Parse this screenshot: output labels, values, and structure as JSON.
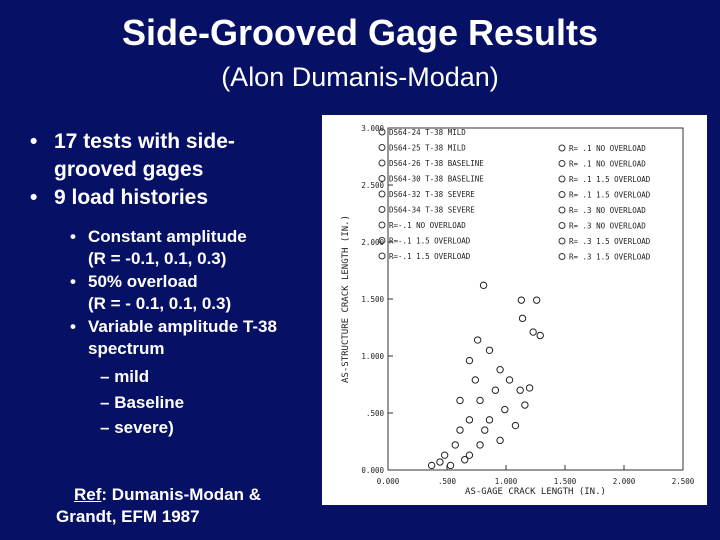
{
  "slide": {
    "title": "Side-Grooved Gage Results",
    "subtitle": "(Alon Dumanis-Modan)",
    "bullets": [
      {
        "lines": [
          "17 tests with side-",
          "grooved gages"
        ]
      },
      {
        "lines": [
          "9 load histories"
        ]
      }
    ],
    "sub_bullets": [
      {
        "lines": [
          "Constant amplitude",
          "(R = -0.1, 0.1, 0.3)"
        ]
      },
      {
        "lines": [
          "50% overload",
          "(R = - 0.1, 0.1, 0.3)"
        ]
      },
      {
        "lines": [
          "Variable amplitude T-38",
          "spectrum"
        ]
      }
    ],
    "dash_items": [
      "mild",
      "Baseline",
      "severe)"
    ],
    "ref_label": "Ref",
    "ref_text": ":  Dumanis-Modan &",
    "ref_text_2": "Grandt, EFM 1987"
  },
  "chart_data": {
    "type": "scatter",
    "x_label": "AS-GAGE CRACK LENGTH (IN.)",
    "y_label": "AS-STRUCTURE CRACK LENGTH (IN.)",
    "legend_left": [
      "DS64-24   T-38 MILD",
      "DS64-25   T-38 MILD",
      "DS64-26   T-38 BASELINE",
      "DS64-30   T-38 BASELINE",
      "DS64-32   T-38 SEVERE",
      "DS64-34   T-38 SEVERE",
      "R=-.1  NO  OVERLOAD",
      "R=-.1  1.5 OVERLOAD",
      "R=-.1  1.5 OVERLOAD"
    ],
    "legend_right": [
      "R= .1   NO  OVERLOAD",
      "R= .1   NO  OVERLOAD",
      "R= .1   1.5 OVERLOAD",
      "R= .1   1.5 OVERLOAD",
      "R= .3   NO  OVERLOAD",
      "R= .3   NO  OVERLOAD",
      "R= .3   1.5 OVERLOAD",
      "R= .3   1.5 OVERLOAD"
    ],
    "xlim": [
      0,
      2.5
    ],
    "ylim": [
      0,
      3
    ],
    "xticks": [
      {
        "value": 0,
        "label": "0.000"
      },
      {
        "value": 0.5,
        "label": ".500"
      },
      {
        "value": 1,
        "label": "1.000"
      },
      {
        "value": 1.5,
        "label": "1.500"
      },
      {
        "value": 2,
        "label": "2.000"
      },
      {
        "value": 2.5,
        "label": "2.500"
      }
    ],
    "yticks": [
      {
        "value": 0,
        "label": "0.000"
      },
      {
        "value": 0.5,
        "label": ".500"
      },
      {
        "value": 1,
        "label": "1.000"
      },
      {
        "value": 1.5,
        "label": "1.500"
      },
      {
        "value": 2,
        "label": "2.000"
      },
      {
        "value": 2.5,
        "label": "2.500"
      },
      {
        "value": 3,
        "label": "3.000"
      }
    ],
    "color": "#222222",
    "x": [
      1.26,
      1.13,
      0.81,
      1.14,
      1.23,
      0.76,
      0.86,
      0.95,
      1.03,
      0.91,
      1.12,
      1.2,
      0.69,
      0.78,
      0.99,
      0.86,
      0.69,
      0.61,
      0.95,
      0.78,
      0.57,
      0.69,
      0.48,
      0.44,
      0.37,
      0.53,
      0.65,
      0.82,
      1.08,
      1.16,
      1.29,
      0.74,
      0.61
    ],
    "y": [
      1.49,
      1.49,
      1.62,
      1.33,
      1.21,
      1.14,
      1.05,
      0.88,
      0.79,
      0.7,
      0.7,
      0.72,
      0.96,
      0.61,
      0.53,
      0.44,
      0.44,
      0.35,
      0.26,
      0.22,
      0.22,
      0.13,
      0.13,
      0.07,
      0.04,
      0.04,
      0.09,
      0.35,
      0.39,
      0.57,
      1.18,
      0.79,
      0.61
    ]
  }
}
